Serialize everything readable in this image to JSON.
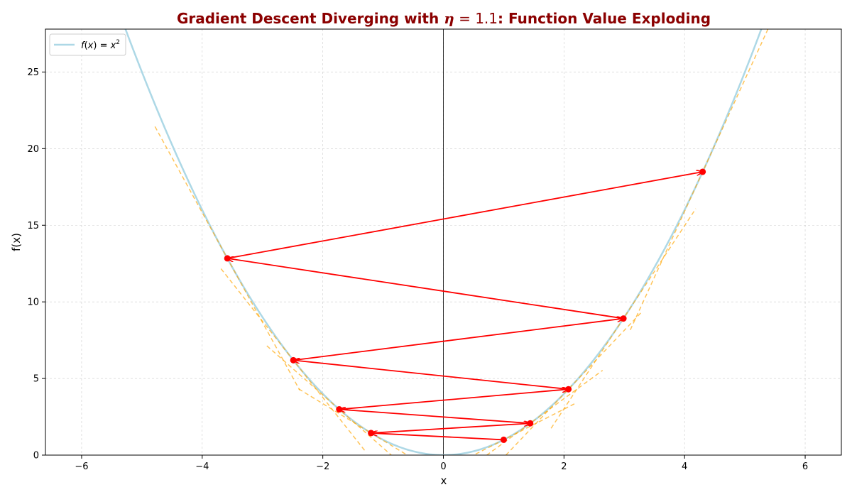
{
  "chart_data": {
    "type": "line",
    "title": "Gradient Descent Diverging with η = 1.1: Function Value Exploding",
    "title_parts": [
      "Gradient Descent Diverging with ",
      "η",
      " = 1.1",
      ": Function Value Exploding"
    ],
    "xlabel": "x",
    "ylabel": "f(x)",
    "xlim": [
      -6.6,
      6.6
    ],
    "ylim": [
      0,
      27.8
    ],
    "xticks": [
      -6,
      -4,
      -2,
      0,
      2,
      4,
      6
    ],
    "xtick_labels": [
      "−6",
      "−4",
      "−2",
      "0",
      "2",
      "4",
      "6"
    ],
    "yticks": [
      0,
      5,
      10,
      15,
      20,
      25
    ],
    "ytick_labels": [
      "0",
      "5",
      "10",
      "15",
      "20",
      "25"
    ],
    "grid": true,
    "legend": {
      "location": "top-left",
      "entries": [
        {
          "label_parts": [
            "f",
            "(",
            "x",
            ") = ",
            "x",
            "2"
          ],
          "color": "#add8e6"
        }
      ]
    },
    "function": {
      "name": "f(x) = x^2",
      "color": "#add8e6"
    },
    "iterates": {
      "color": "#ff0000",
      "x": [
        1.0,
        -1.2,
        1.44,
        -1.728,
        2.0736,
        -2.48832,
        2.985984,
        -3.5831808,
        4.29981696
      ],
      "y": [
        1.0,
        1.44,
        2.0736,
        2.985984,
        4.29981696,
        6.1917364,
        8.9161004,
        12.8391846,
        18.4884259
      ]
    },
    "tangent_lines": {
      "color": "#ffa500",
      "style": "dashed",
      "half_width_x": 1.2
    },
    "vertical_line_at_x": 0
  }
}
